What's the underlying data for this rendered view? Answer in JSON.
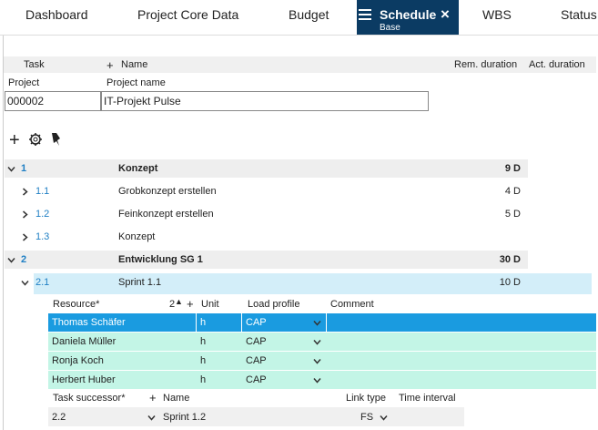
{
  "tabs": [
    "Dashboard",
    "Project Core Data",
    "Budget",
    "WBS",
    "Status"
  ],
  "active_tab": {
    "title": "Schedule",
    "subtitle": "Base"
  },
  "task_header": {
    "task": "Task",
    "name": "Name",
    "rem_duration": "Rem. duration",
    "act_duration": "Act. duration"
  },
  "project": {
    "label": "Project",
    "name_label": "Project name",
    "id": "000002",
    "name": "IT-Projekt Pulse"
  },
  "tasks": [
    {
      "id": "1",
      "name": "Konzept",
      "rem": "9 D",
      "level": 0,
      "open": true
    },
    {
      "id": "1.1",
      "name": "Grobkonzept erstellen",
      "rem": "4 D",
      "level": 1,
      "open": false
    },
    {
      "id": "1.2",
      "name": "Feinkonzept erstellen",
      "rem": "5 D",
      "level": 1,
      "open": false
    },
    {
      "id": "1.3",
      "name": "Konzept",
      "rem": null,
      "level": 1,
      "open": false
    },
    {
      "id": "2",
      "name": "Entwicklung SG 1",
      "rem": "30 D",
      "level": 0,
      "open": true
    },
    {
      "id": "2.1",
      "name": "Sprint 1.1",
      "rem": "10 D",
      "level": 1,
      "open": true
    }
  ],
  "resources": {
    "header": {
      "resource": "Resource*",
      "sort": "2",
      "unit": "Unit",
      "load_profile": "Load profile",
      "comment": "Comment"
    },
    "rows": [
      [
        "Thomas Schäfer",
        "h",
        "CAP"
      ],
      [
        "Daniela Müller",
        "h",
        "CAP"
      ],
      [
        "Ronja Koch",
        "h",
        "CAP"
      ],
      [
        "Herbert Huber",
        "h",
        "CAP"
      ]
    ]
  },
  "successors": {
    "header": {
      "task": "Task successor*",
      "name": "Name",
      "link_type": "Link type",
      "time_interval": "Time interval"
    },
    "rows": [
      [
        "2.2",
        "Sprint 1.2",
        "FS"
      ]
    ]
  }
}
